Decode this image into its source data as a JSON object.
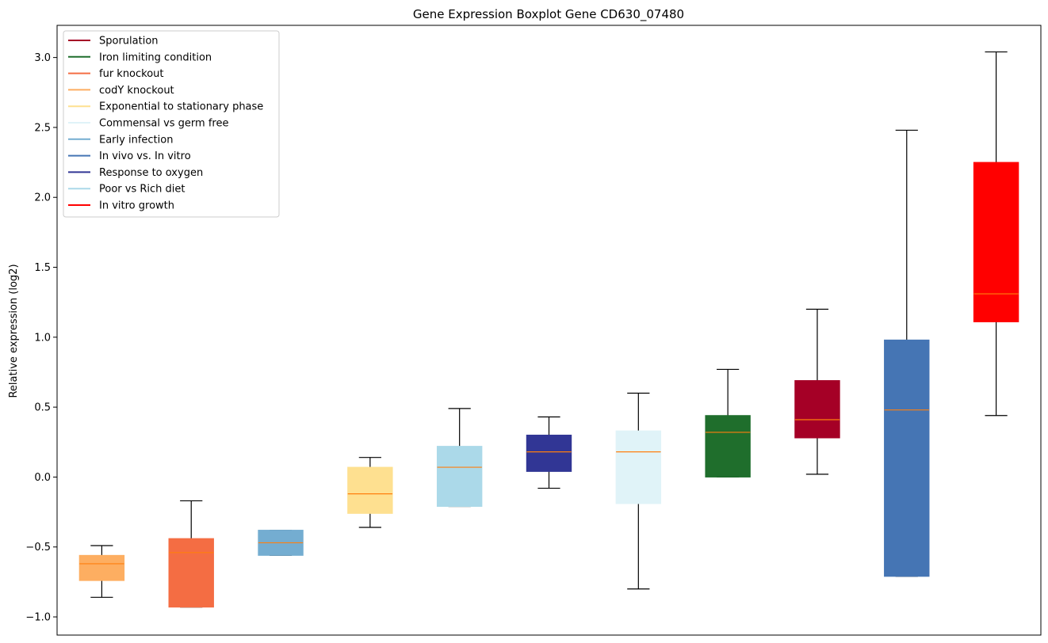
{
  "chart_data": {
    "type": "boxplot",
    "title": "Gene Expression Boxplot Gene CD630_07480",
    "xlabel": "",
    "ylabel": "Relative expression (log2)",
    "ylim": [
      -1.13,
      3.23
    ],
    "yticks": [
      -1.0,
      -0.5,
      0.0,
      0.5,
      1.0,
      1.5,
      2.0,
      2.5,
      3.0
    ],
    "ytick_labels": [
      "−1.0",
      "−0.5",
      "0.0",
      "0.5",
      "1.0",
      "1.5",
      "2.0",
      "2.5",
      "3.0"
    ],
    "median_color": "#ff7f0e",
    "legend_position": "top-left",
    "legend": [
      {
        "label": "Sporulation",
        "color": "#a50026"
      },
      {
        "label": "Iron limiting condition",
        "color": "#1f6e2c"
      },
      {
        "label": "fur knockout",
        "color": "#f46d43"
      },
      {
        "label": "codY knockout",
        "color": "#fdae61"
      },
      {
        "label": "Exponential to stationary phase",
        "color": "#fee090"
      },
      {
        "label": "Commensal vs germ free",
        "color": "#e0f3f8"
      },
      {
        "label": "Early infection",
        "color": "#74add1"
      },
      {
        "label": "In vivo vs. In vitro",
        "color": "#4575b4"
      },
      {
        "label": "Response to oxygen",
        "color": "#313695"
      },
      {
        "label": "Poor vs Rich diet",
        "color": "#abd9e9"
      },
      {
        "label": "In vitro growth",
        "color": "#ff0000"
      }
    ],
    "boxes": [
      {
        "group": "codY knockout",
        "color": "#fdae61",
        "whislo": -0.86,
        "q1": -0.74,
        "median": -0.62,
        "q3": -0.56,
        "whishi": -0.49
      },
      {
        "group": "fur knockout",
        "color": "#f46d43",
        "whislo": -0.93,
        "q1": -0.93,
        "median": -0.54,
        "q3": -0.44,
        "whishi": -0.17
      },
      {
        "group": "Early infection",
        "color": "#74add1",
        "whislo": -0.56,
        "q1": -0.56,
        "median": -0.47,
        "q3": -0.38,
        "whishi": -0.38
      },
      {
        "group": "Exponential to stationary phase",
        "color": "#fee090",
        "whislo": -0.36,
        "q1": -0.26,
        "median": -0.12,
        "q3": 0.07,
        "whishi": 0.14
      },
      {
        "group": "Poor vs Rich diet",
        "color": "#abd9e9",
        "whislo": -0.21,
        "q1": -0.21,
        "median": 0.07,
        "q3": 0.22,
        "whishi": 0.49
      },
      {
        "group": "Response to oxygen",
        "color": "#313695",
        "whislo": -0.08,
        "q1": 0.04,
        "median": 0.18,
        "q3": 0.3,
        "whishi": 0.43
      },
      {
        "group": "Commensal vs germ free",
        "color": "#e0f3f8",
        "whislo": -0.8,
        "q1": -0.19,
        "median": 0.18,
        "q3": 0.33,
        "whishi": 0.6
      },
      {
        "group": "Iron limiting condition",
        "color": "#1f6e2c",
        "whislo": 0.0,
        "q1": 0.0,
        "median": 0.32,
        "q3": 0.44,
        "whishi": 0.77
      },
      {
        "group": "Sporulation",
        "color": "#a50026",
        "whislo": 0.02,
        "q1": 0.28,
        "median": 0.41,
        "q3": 0.69,
        "whishi": 1.2
      },
      {
        "group": "In vivo vs. In vitro",
        "color": "#4575b4",
        "whislo": -0.71,
        "q1": -0.71,
        "median": 0.48,
        "q3": 0.98,
        "whishi": 2.48
      },
      {
        "group": "In vitro growth",
        "color": "#ff0000",
        "whislo": 0.44,
        "q1": 1.11,
        "median": 1.31,
        "q3": 2.25,
        "whishi": 3.04
      }
    ]
  }
}
